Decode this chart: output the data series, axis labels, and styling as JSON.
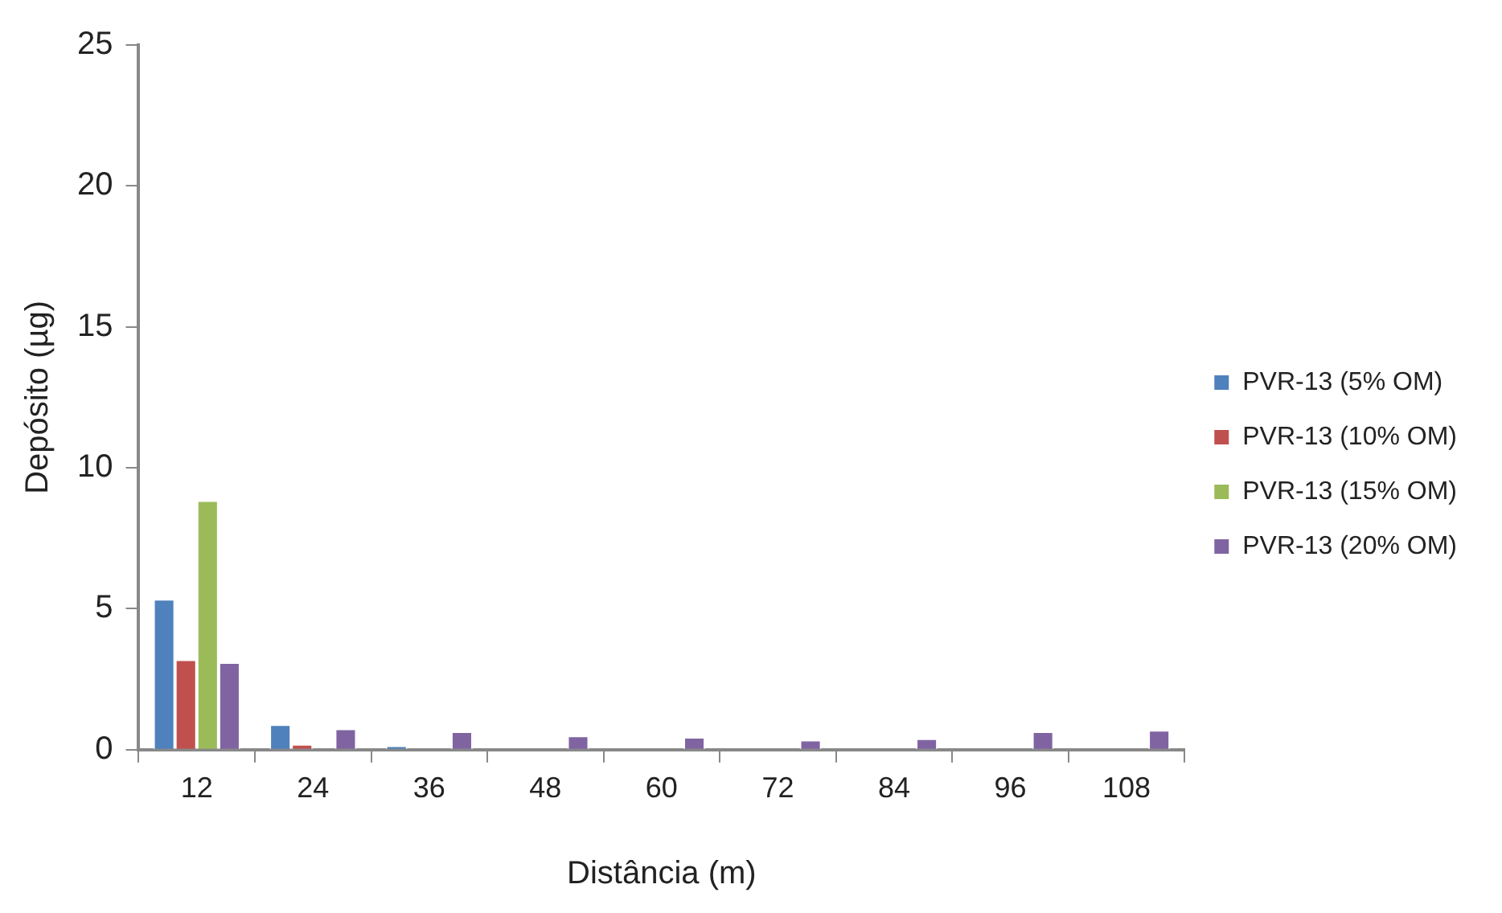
{
  "chart_data": {
    "type": "bar",
    "xlabel": "Distância (m)",
    "ylabel": "Depósito (µg)",
    "categories": [
      "12",
      "24",
      "36",
      "48",
      "60",
      "72",
      "84",
      "96",
      "108"
    ],
    "series": [
      {
        "name": "PVR-13 (5% OM)",
        "color": "#4f81bd",
        "values": [
          5.35,
          0.9,
          0.15,
          0,
          0,
          0,
          0,
          0,
          0
        ]
      },
      {
        "name": "PVR-13 (10% OM)",
        "color": "#c0504d",
        "values": [
          3.2,
          0.2,
          0,
          0,
          0,
          0,
          0,
          0,
          0
        ]
      },
      {
        "name": "PVR-13 (15% OM)",
        "color": "#9bbb59",
        "values": [
          8.85,
          0,
          0,
          0,
          0,
          0,
          0,
          0,
          0
        ]
      },
      {
        "name": "PVR-13 (20% OM)",
        "color": "#8064a2",
        "values": [
          3.1,
          0.75,
          0.65,
          0.5,
          0.45,
          0.35,
          0.4,
          0.65,
          0.7
        ]
      }
    ],
    "ylim": [
      0,
      25
    ],
    "yticks": [
      0,
      5,
      10,
      15,
      20,
      25
    ],
    "grid": false,
    "legend": "right"
  }
}
